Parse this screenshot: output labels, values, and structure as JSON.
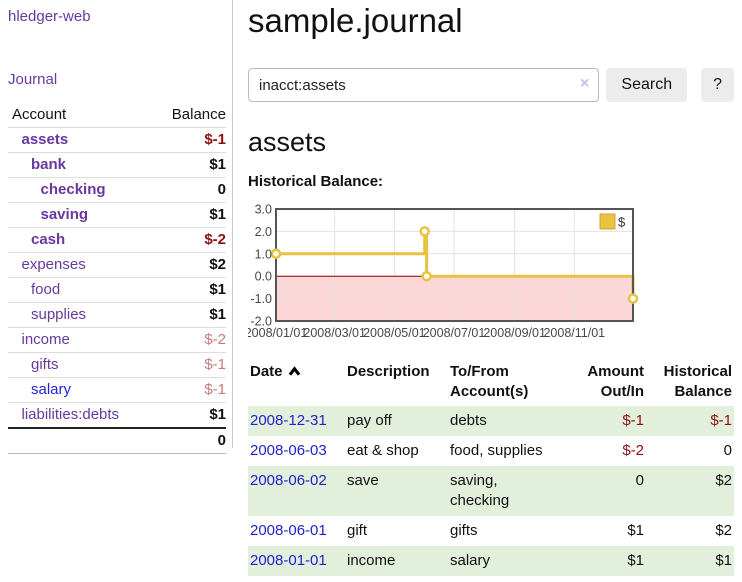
{
  "app": {
    "title": "hledger-web"
  },
  "sidebar": {
    "journal_link": "Journal",
    "accounts_table": {
      "headers": {
        "account": "Account",
        "balance": "Balance"
      },
      "rows": [
        {
          "name": "assets",
          "indent": 1,
          "bold": true,
          "balance": "$-1",
          "balance_class": "neg",
          "link": "purple"
        },
        {
          "name": "bank",
          "indent": 2,
          "bold": true,
          "balance": "$1",
          "balance_class": "",
          "link": "purple"
        },
        {
          "name": "checking",
          "indent": 3,
          "bold": true,
          "balance": "0",
          "balance_class": "",
          "link": "purple"
        },
        {
          "name": "saving",
          "indent": 3,
          "bold": true,
          "balance": "$1",
          "balance_class": "",
          "link": "purple"
        },
        {
          "name": "cash",
          "indent": 2,
          "bold": true,
          "balance": "$-2",
          "balance_class": "neg",
          "link": "purple"
        },
        {
          "name": "expenses",
          "indent": 1,
          "bold": false,
          "balance": "$2",
          "balance_class": "",
          "link": "purple"
        },
        {
          "name": "food",
          "indent": 2,
          "bold": false,
          "balance": "$1",
          "balance_class": "",
          "link": "purple"
        },
        {
          "name": "supplies",
          "indent": 2,
          "bold": false,
          "balance": "$1",
          "balance_class": "",
          "link": "purple"
        },
        {
          "name": "income",
          "indent": 1,
          "bold": false,
          "balance": "$-2",
          "balance_class": "neg-soft",
          "link": "purple"
        },
        {
          "name": "gifts",
          "indent": 2,
          "bold": false,
          "balance": "$-1",
          "balance_class": "neg-soft",
          "link": "purple"
        },
        {
          "name": "salary",
          "indent": 2,
          "bold": false,
          "balance": "$-1",
          "balance_class": "neg-soft",
          "link": "blue"
        },
        {
          "name": "liabilities:debts",
          "indent": 1,
          "bold": false,
          "balance": "$1",
          "balance_class": "",
          "link": "purple"
        }
      ],
      "total": "0"
    }
  },
  "main": {
    "title": "sample.journal",
    "search": {
      "value": "inacct:assets",
      "clear_icon": "×",
      "button_label": "Search",
      "help_label": "?"
    },
    "account_heading": "assets",
    "chart_label": "Historical Balance:",
    "transactions": {
      "headers": {
        "date": "Date",
        "description": "Description",
        "tofrom": "To/From Account(s)",
        "amount": "Amount Out/In",
        "balance": "Historical Balance"
      },
      "rows": [
        {
          "date": "2008-12-31",
          "description": "pay off",
          "tofrom": "debts",
          "amount": "$-1",
          "amount_class": "neg",
          "balance": "$-1",
          "balance_class": "neg"
        },
        {
          "date": "2008-06-03",
          "description": "eat & shop",
          "tofrom": "food, supplies",
          "amount": "$-2",
          "amount_class": "neg",
          "balance": "0",
          "balance_class": ""
        },
        {
          "date": "2008-06-02",
          "description": "save",
          "tofrom": "saving, checking",
          "amount": "0",
          "amount_class": "",
          "balance": "$2",
          "balance_class": ""
        },
        {
          "date": "2008-06-01",
          "description": "gift",
          "tofrom": "gifts",
          "amount": "$1",
          "amount_class": "",
          "balance": "$2",
          "balance_class": ""
        },
        {
          "date": "2008-01-01",
          "description": "income",
          "tofrom": "salary",
          "amount": "$1",
          "amount_class": "",
          "balance": "$1",
          "balance_class": ""
        }
      ]
    }
  },
  "chart_data": {
    "type": "line",
    "title": "Historical Balance",
    "series": [
      {
        "name": "$",
        "color": "#e8c240",
        "step": true,
        "points": [
          {
            "date": "2008-01-01",
            "value": 1
          },
          {
            "date": "2008-06-01",
            "value": 2
          },
          {
            "date": "2008-06-03",
            "value": 0
          },
          {
            "date": "2008-12-31",
            "value": -1
          }
        ]
      }
    ],
    "x_range": [
      "2008-01-01",
      "2008-12-31"
    ],
    "x_ticks": [
      "2008/01/01",
      "2008/03/01",
      "2008/05/01",
      "2008/07/01",
      "2008/09/01",
      "2008/11/01"
    ],
    "y_range": [
      -2,
      3
    ],
    "y_ticks": [
      3.0,
      2.0,
      1.0,
      0.0,
      -1.0,
      -2.0
    ],
    "legend": {
      "label": "$",
      "position": "top-right"
    },
    "grid": true,
    "negative_region_fill": "#fcd7d7",
    "zero_line_color": "#8b0000",
    "plot_border_color": "#555555",
    "gridline_color": "#e2e2e2",
    "tick_text_color": "#474747"
  },
  "colors": {
    "link_purple": "#68389f",
    "link_blue": "#2424dd",
    "negative_strong": "#8c1212",
    "negative_soft": "#c47c7e",
    "row_stripe_green": "#e2efda",
    "button_bg": "#ececec"
  }
}
